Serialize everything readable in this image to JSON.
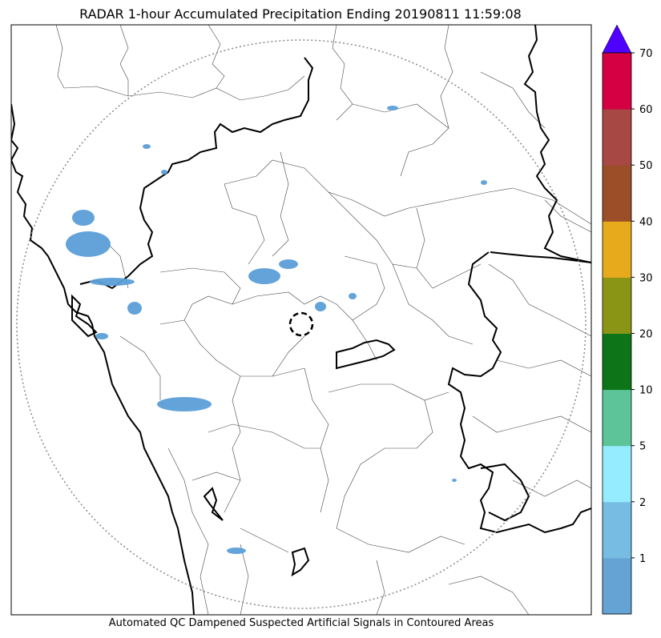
{
  "title": "RADAR 1-hour Accumulated Precipitation Ending 20190811 11:59:08",
  "footer": "Automated QC Dampened Suspected Artificial Signals in Contoured Areas",
  "colorbar": {
    "bins": [
      {
        "color": "#65a3d5"
      },
      {
        "color": "#77bde3"
      },
      {
        "color": "#94ecfe"
      },
      {
        "color": "#5dc49a"
      },
      {
        "color": "#0e7418"
      },
      {
        "color": "#8b9515"
      },
      {
        "color": "#e6aa1c"
      },
      {
        "color": "#9b4e28"
      },
      {
        "color": "#a74844"
      },
      {
        "color": "#d50043"
      }
    ],
    "extend_color": "#5000ff",
    "ticks": [
      "1",
      "2",
      "5",
      "10",
      "20",
      "30",
      "40",
      "50",
      "60",
      "70"
    ]
  },
  "map": {
    "outline_color": "#000000",
    "district_color": "#444444",
    "range_ring_color": "#888888",
    "precip_color": "#5b9fd8"
  }
}
